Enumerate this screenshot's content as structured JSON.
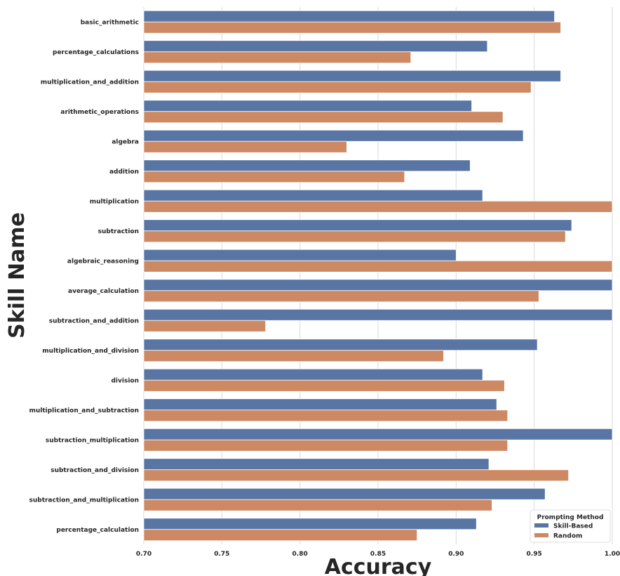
{
  "chart_data": {
    "type": "bar",
    "orientation": "horizontal",
    "xlabel": "Accuracy",
    "ylabel": "Skill Name",
    "xlim": [
      0.7,
      1.0
    ],
    "xticks": [
      "0.70",
      "0.75",
      "0.80",
      "0.85",
      "0.90",
      "0.95",
      "1.00"
    ],
    "grid": "vertical",
    "legend": {
      "title": "Prompting Method",
      "placement": "bottom-right"
    },
    "categories": [
      "basic_arithmetic",
      "percentage_calculations",
      "multiplication_and_addition",
      "arithmetic_operations",
      "algebra",
      "addition",
      "multiplication",
      "subtraction",
      "algebraic_reasoning",
      "average_calculation",
      "subtraction_and_addition",
      "multiplication_and_division",
      "division",
      "multiplication_and_subtraction",
      "subtraction_multiplication",
      "subtraction_and_division",
      "subtraction_and_multiplication",
      "percentage_calculation"
    ],
    "series": [
      {
        "name": "Skill-Based",
        "color": "#5875a4",
        "values": [
          0.963,
          0.92,
          0.967,
          0.91,
          0.943,
          0.909,
          0.917,
          0.974,
          0.9,
          1.0,
          1.0,
          0.952,
          0.917,
          0.926,
          1.0,
          0.921,
          0.957,
          0.913
        ]
      },
      {
        "name": "Random",
        "color": "#cc8963",
        "values": [
          0.967,
          0.871,
          0.948,
          0.93,
          0.83,
          0.867,
          1.0,
          0.97,
          1.0,
          0.953,
          0.778,
          0.892,
          0.931,
          0.933,
          0.933,
          0.972,
          0.923,
          0.875
        ]
      }
    ]
  }
}
